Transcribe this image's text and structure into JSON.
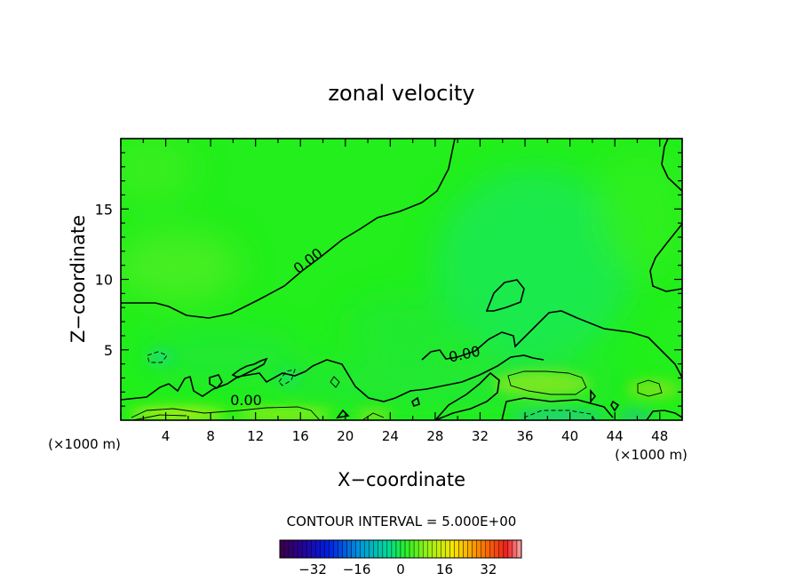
{
  "chart_data": {
    "type": "heatmap",
    "title": "zonal velocity",
    "xlabel": "X−coordinate",
    "ylabel": "Z−coordinate",
    "x_unit": "(×1000 m)",
    "x_unit_right": "(×1000 m)",
    "xlim": [
      0,
      50
    ],
    "ylim": [
      0,
      20
    ],
    "x_ticks": [
      4,
      8,
      12,
      16,
      20,
      24,
      28,
      32,
      36,
      40,
      44,
      48
    ],
    "y_ticks": [
      5,
      10,
      15
    ],
    "contour_labels": [
      {
        "text": "0.00",
        "x": 17,
        "y": 11
      },
      {
        "text": "0.00",
        "x": 30.5,
        "y": 4.3
      },
      {
        "text": "0.00",
        "x": 11,
        "y": 1.5
      }
    ],
    "contour_interval_text": "CONTOUR INTERVAL =  5.000E+00",
    "colorbar": {
      "range": [
        -44,
        44
      ],
      "tick_labels": [
        "−32",
        "−16",
        "0",
        "16",
        "32"
      ],
      "tick_values": [
        -32,
        -16,
        0,
        16,
        32
      ]
    },
    "colors": {
      "field_background": "#22ef1b",
      "contour": "#000000"
    }
  }
}
